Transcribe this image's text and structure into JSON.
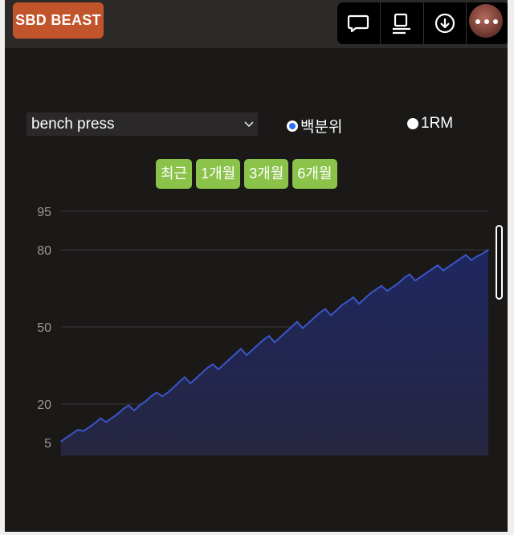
{
  "app": {
    "logo_text": "SBD BEAST"
  },
  "toolbar": {
    "icons": [
      "chat-bubble-icon",
      "reader-icon",
      "download-icon",
      "more-icon"
    ]
  },
  "controls": {
    "exercise_selected": "bench press",
    "unit_options": [
      {
        "label": "백분위",
        "selected": true
      },
      {
        "label": "1RM",
        "selected": false
      }
    ],
    "range_buttons": [
      "최근",
      "1개월",
      "3개월",
      "6개월"
    ]
  },
  "colors": {
    "accent_green": "#8bc34a",
    "logo_orange": "#c2542b",
    "series_line": "#3a55c9",
    "series_fill": "#1e2760",
    "background": "#1b1918"
  },
  "chart_data": {
    "type": "area",
    "title": "",
    "xlabel": "",
    "ylabel": "",
    "y_ticks": [
      95,
      80,
      50,
      20,
      5
    ],
    "ylim": [
      0,
      100
    ],
    "grid": true,
    "series": [
      {
        "values": [
          5.5,
          7,
          8.5,
          10,
          9.5,
          11,
          12.5,
          14.5,
          13,
          14.5,
          16,
          18,
          19.5,
          17.5,
          19.5,
          21,
          23,
          24.5,
          23,
          24.5,
          26.5,
          28.5,
          30.5,
          28,
          30,
          32,
          34,
          35.5,
          33.5,
          35.5,
          37.5,
          39.5,
          41.5,
          39,
          41,
          43,
          45,
          46.5,
          44,
          46,
          48,
          50,
          52,
          49.5,
          51.5,
          53.5,
          55.5,
          57,
          54.5,
          56.5,
          58.5,
          60,
          61.5,
          59,
          61,
          63,
          64.5,
          66,
          64,
          65.5,
          67,
          69,
          70.5,
          68,
          69.5,
          71,
          72.5,
          74,
          72,
          73.5,
          75,
          76.5,
          78,
          76,
          77.5,
          78.5,
          80
        ]
      }
    ]
  }
}
